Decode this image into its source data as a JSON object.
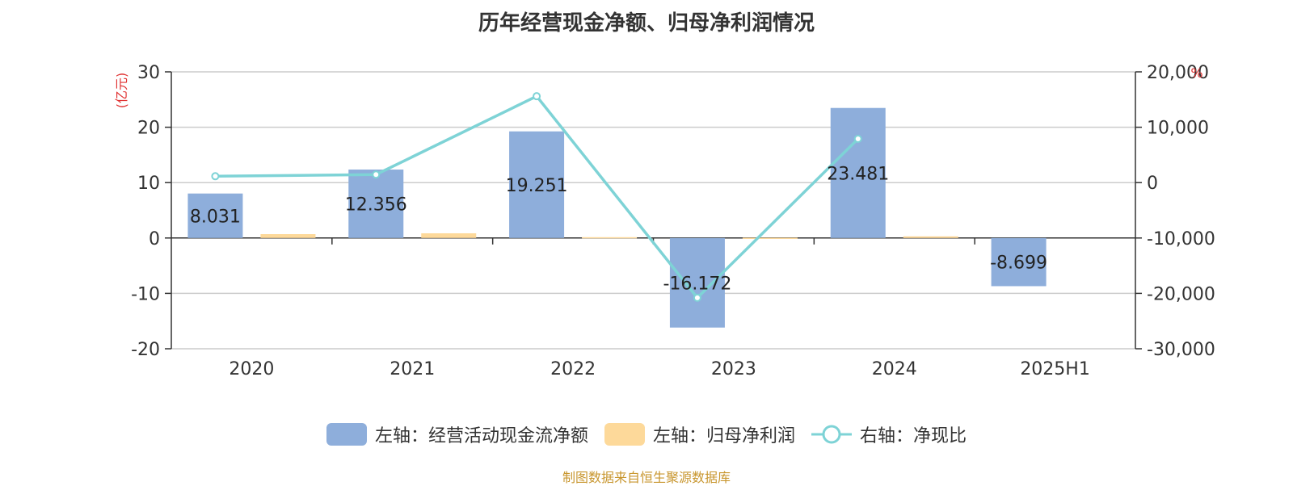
{
  "title": "历年经营现金净额、归母净利润情况",
  "footer": "制图数据来自恒生聚源数据库",
  "colors": {
    "series_cash": "#8eaedb",
    "series_profit": "#fdd99a",
    "series_ratio": "#7ed3d6",
    "unit_label": "#e03131",
    "footer": "#c8962e"
  },
  "legend": [
    {
      "label": "左轴：经营活动现金流净额",
      "icon": "bar-swatch"
    },
    {
      "label": "左轴：归母净利润",
      "icon": "bar-swatch"
    },
    {
      "label": "右轴：净现比",
      "icon": "line-circle-swatch"
    }
  ],
  "chart_data": {
    "type": "bar",
    "title": "历年经营现金净额、归母净利润情况",
    "categories": [
      "2020",
      "2021",
      "2022",
      "2023",
      "2024",
      "2025H1"
    ],
    "left_axis": {
      "unit": "(亿元)",
      "ylim": [
        -20,
        30
      ],
      "ticks": [
        "30",
        "20",
        "10",
        "0",
        "-10",
        "-20"
      ],
      "tick_values": [
        30,
        20,
        10,
        0,
        -10,
        -20
      ]
    },
    "right_axis": {
      "unit": "%",
      "ylim": [
        -30000,
        20000
      ],
      "ticks": [
        "20,000",
        "10,000",
        "0",
        "-10,000",
        "-20,000",
        "-30,000"
      ],
      "tick_values": [
        20000,
        10000,
        0,
        -10000,
        -20000,
        -30000
      ]
    },
    "grid": true,
    "legend_position": "bottom-center",
    "series": [
      {
        "name": "左轴：经营活动现金流净额",
        "type": "bar",
        "axis": "left",
        "values": [
          8.031,
          12.356,
          19.251,
          -16.172,
          23.481,
          -8.699
        ],
        "data_labels": [
          "8.031",
          "12.356",
          "19.251",
          "-16.172",
          "23.481",
          "-8.699"
        ]
      },
      {
        "name": "左轴：归母净利润",
        "type": "bar",
        "axis": "left",
        "values": [
          0.7,
          0.85,
          0.15,
          0.05,
          0.3,
          null
        ]
      },
      {
        "name": "右轴：净现比",
        "type": "line",
        "axis": "right",
        "values": [
          1150,
          1450,
          15600,
          -20800,
          7900,
          null
        ]
      }
    ]
  }
}
